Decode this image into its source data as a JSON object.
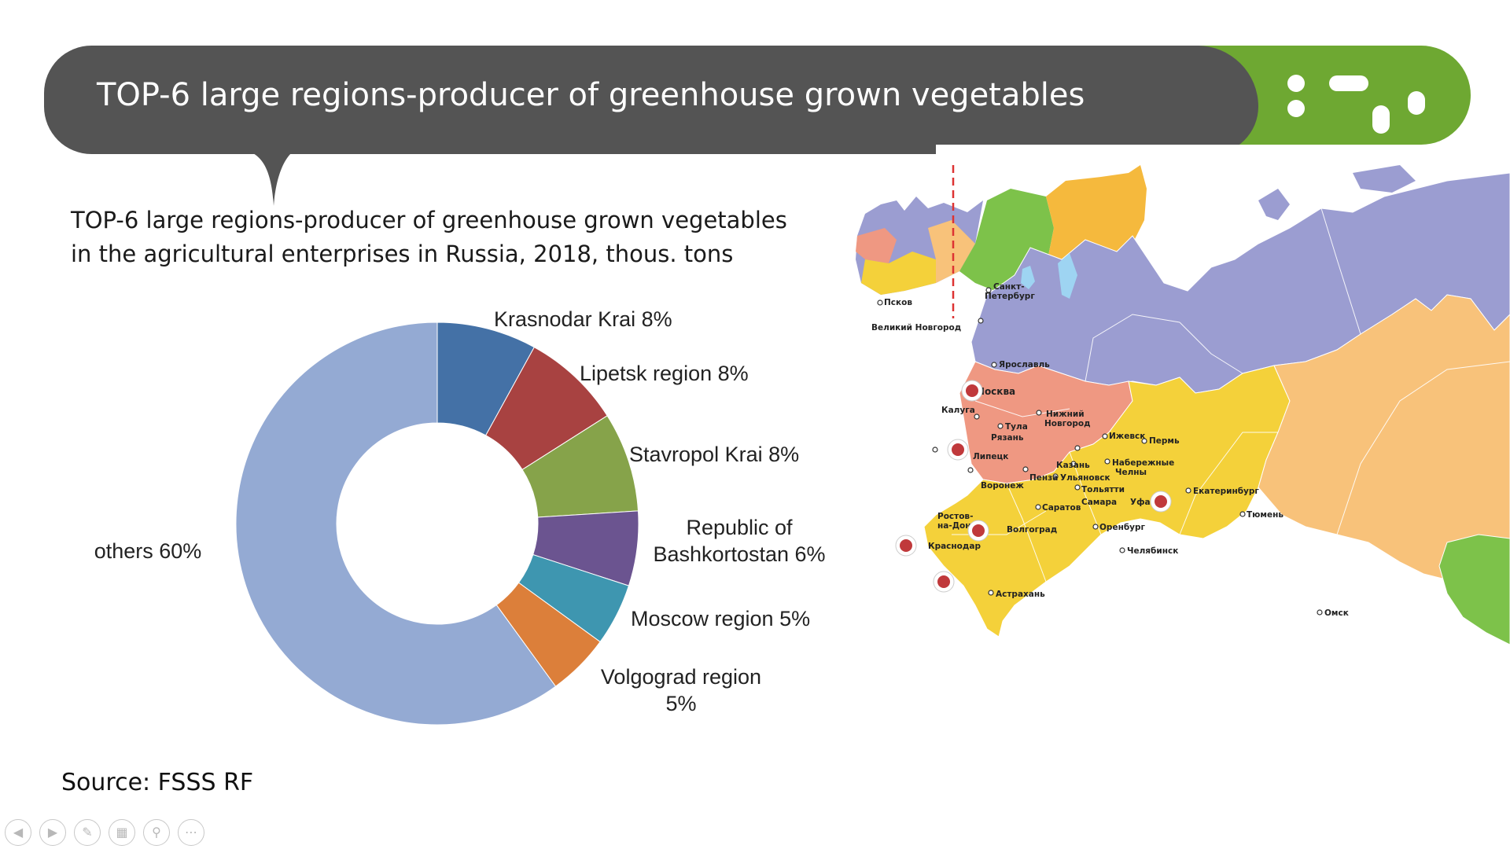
{
  "header": {
    "title": "TOP-6 large regions-producer of greenhouse grown vegetables"
  },
  "subtitle": {
    "line1": "TOP-6 large regions-producer of greenhouse grown vegetables",
    "line2": "in the agricultural enterprises in Russia, 2018, thous. tons"
  },
  "chart_data": {
    "type": "pie",
    "subtype": "donut",
    "title": "",
    "slices": [
      {
        "label_lines": [
          "Krasnodar Krai 8%"
        ],
        "value": 8,
        "color": "#4471a6"
      },
      {
        "label_lines": [
          "Lipetsk region 8%"
        ],
        "value": 8,
        "color": "#a84241"
      },
      {
        "label_lines": [
          "Stavropol Krai 8%"
        ],
        "value": 8,
        "color": "#86a34a"
      },
      {
        "label_lines": [
          "Republic  of",
          "Bashkortostan 6%"
        ],
        "value": 6,
        "color": "#6b5490"
      },
      {
        "label_lines": [
          "Moscow region  5%"
        ],
        "value": 5,
        "color": "#3e96b0"
      },
      {
        "label_lines": [
          "Volgograd  region",
          "5%"
        ],
        "value": 5,
        "color": "#dc7f3a"
      },
      {
        "label_lines": [
          "others 60%"
        ],
        "value": 60,
        "color": "#94aad3"
      }
    ]
  },
  "source": "Source: FSSS RF",
  "map": {
    "region_colors": {
      "northwest": "#9b9dd1",
      "central": "#ef9882",
      "volga_south": "#f4d13a",
      "ural": "#f8c27a",
      "siberia": "#7dc24a"
    },
    "marker_color": "#c0393b",
    "cities": [
      "Санкт-",
      "Петербург",
      "Псков",
      "Великий Новгород",
      "Ярославль",
      "Москва",
      "Калуга",
      "Тула",
      "Рязань",
      "Липецк",
      "Воронеж",
      "Нижний",
      "Новгород",
      "Ижевск",
      "Пермь",
      "Казань",
      "Набережные",
      "Челны",
      "Пенза",
      "Ульяновск",
      "Тольятти",
      "Самара",
      "Уфа",
      "Екатеринбург",
      "Тюмень",
      "Саратов",
      "Ростов-",
      "на-Дону",
      "Волгоград",
      "Краснодар",
      "Оренбург",
      "Челябинск",
      "Омск",
      "Астрахань"
    ]
  },
  "nav": {
    "buttons": [
      "prev-icon",
      "next-icon",
      "pen-icon",
      "slides-icon",
      "zoom-icon",
      "more-icon"
    ]
  }
}
